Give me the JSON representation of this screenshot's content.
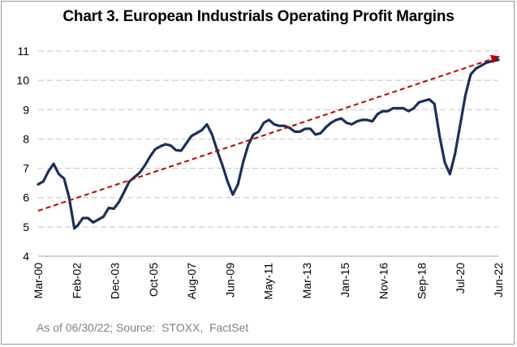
{
  "chart_data": {
    "type": "line",
    "title": "Chart 3. European Industrials Operating Profit Margins",
    "xlabel": "",
    "ylabel": "",
    "ylim": [
      4,
      11
    ],
    "yticks": [
      4,
      5,
      6,
      7,
      8,
      9,
      10,
      11
    ],
    "x_tick_labels": [
      "Mar-00",
      "Feb-02",
      "Dec-03",
      "Oct-05",
      "Aug-07",
      "Jun-09",
      "May-11",
      "Mar-13",
      "Jan-15",
      "Nov-16",
      "Sep-18",
      "Jul-20",
      "Jun-22"
    ],
    "grid": "horizontal dashed",
    "legend": "none",
    "colors": {
      "series": "#17305c",
      "trend": "#c00000"
    },
    "series": [
      {
        "style": "solid",
        "x": [
          2000.17,
          2000.42,
          2000.67,
          2000.92,
          2001.17,
          2001.42,
          2001.67,
          2001.92,
          2002.08,
          2002.33,
          2002.58,
          2002.83,
          2003.08,
          2003.33,
          2003.58,
          2003.83,
          2004.08,
          2004.33,
          2004.58,
          2004.83,
          2005.08,
          2005.33,
          2005.58,
          2005.83,
          2006.08,
          2006.33,
          2006.58,
          2006.83,
          2007.08,
          2007.33,
          2007.58,
          2007.83,
          2008.08,
          2008.33,
          2008.58,
          2008.83,
          2009.08,
          2009.33,
          2009.58,
          2009.83,
          2010.08,
          2010.33,
          2010.58,
          2010.83,
          2011.08,
          2011.33,
          2011.58,
          2011.83,
          2012.08,
          2012.33,
          2012.58,
          2012.83,
          2013.08,
          2013.33,
          2013.58,
          2013.83,
          2014.08,
          2014.33,
          2014.58,
          2014.83,
          2015.08,
          2015.33,
          2015.58,
          2015.83,
          2016.08,
          2016.33,
          2016.58,
          2016.83,
          2017.08,
          2017.33,
          2017.58,
          2017.83,
          2018.08,
          2018.33,
          2018.58,
          2018.83,
          2019.08,
          2019.33,
          2019.58,
          2019.83,
          2020.08,
          2020.33,
          2020.58,
          2020.83,
          2021.08,
          2021.33,
          2021.58,
          2021.83,
          2022.08,
          2022.42
        ],
        "values": [
          6.45,
          6.55,
          6.9,
          7.15,
          6.8,
          6.65,
          6.0,
          4.95,
          5.05,
          5.3,
          5.3,
          5.15,
          5.25,
          5.35,
          5.65,
          5.62,
          5.85,
          6.2,
          6.55,
          6.7,
          6.85,
          7.1,
          7.4,
          7.65,
          7.75,
          7.82,
          7.78,
          7.62,
          7.6,
          7.85,
          8.1,
          8.2,
          8.3,
          8.5,
          8.15,
          7.6,
          7.1,
          6.55,
          6.1,
          6.45,
          7.2,
          7.8,
          8.15,
          8.25,
          8.55,
          8.65,
          8.5,
          8.45,
          8.45,
          8.38,
          8.25,
          8.25,
          8.35,
          8.35,
          8.15,
          8.2,
          8.4,
          8.55,
          8.65,
          8.7,
          8.55,
          8.5,
          8.6,
          8.65,
          8.65,
          8.6,
          8.85,
          8.95,
          8.95,
          9.05,
          9.05,
          9.05,
          8.95,
          9.05,
          9.25,
          9.3,
          9.35,
          9.2,
          8.1,
          7.2,
          6.8,
          7.5,
          8.5,
          9.5,
          10.2,
          10.4,
          10.5,
          10.6,
          10.65,
          10.7
        ]
      },
      {
        "style": "dashed-trend",
        "x": [
          2000.17,
          2022.42
        ],
        "values": [
          5.55,
          10.8
        ]
      }
    ],
    "xlim": [
      2000.17,
      2022.42
    ]
  },
  "footer": {
    "source": "As of 06/30/22; Source:  STOXX,  FactSet"
  }
}
